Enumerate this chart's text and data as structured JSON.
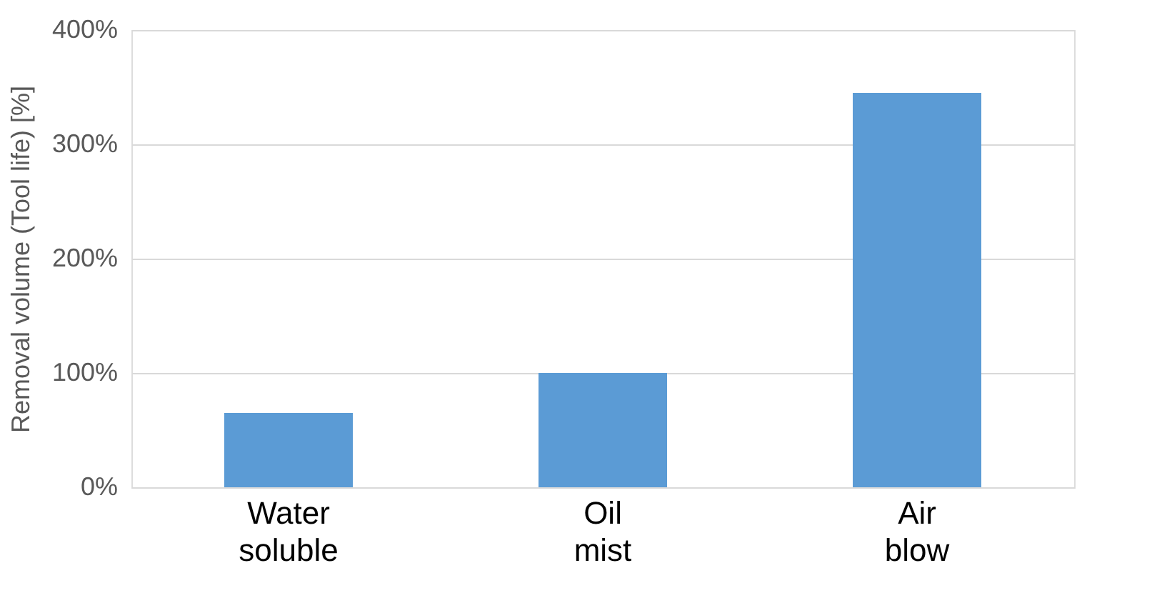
{
  "chart_data": {
    "type": "bar",
    "categories": [
      "Water soluble",
      "Oil mist",
      "Air blow"
    ],
    "values": [
      65,
      100,
      345
    ],
    "color": "#5b9bd5",
    "ylabel": "Removal volume (Tool life) [%]",
    "ylim": [
      0,
      400
    ],
    "yticks": [
      {
        "value": 0,
        "label": "0%"
      },
      {
        "value": 100,
        "label": "100%"
      },
      {
        "value": 200,
        "label": "200%"
      },
      {
        "value": 300,
        "label": "300%"
      },
      {
        "value": 400,
        "label": "400%"
      }
    ],
    "grid": "y"
  }
}
